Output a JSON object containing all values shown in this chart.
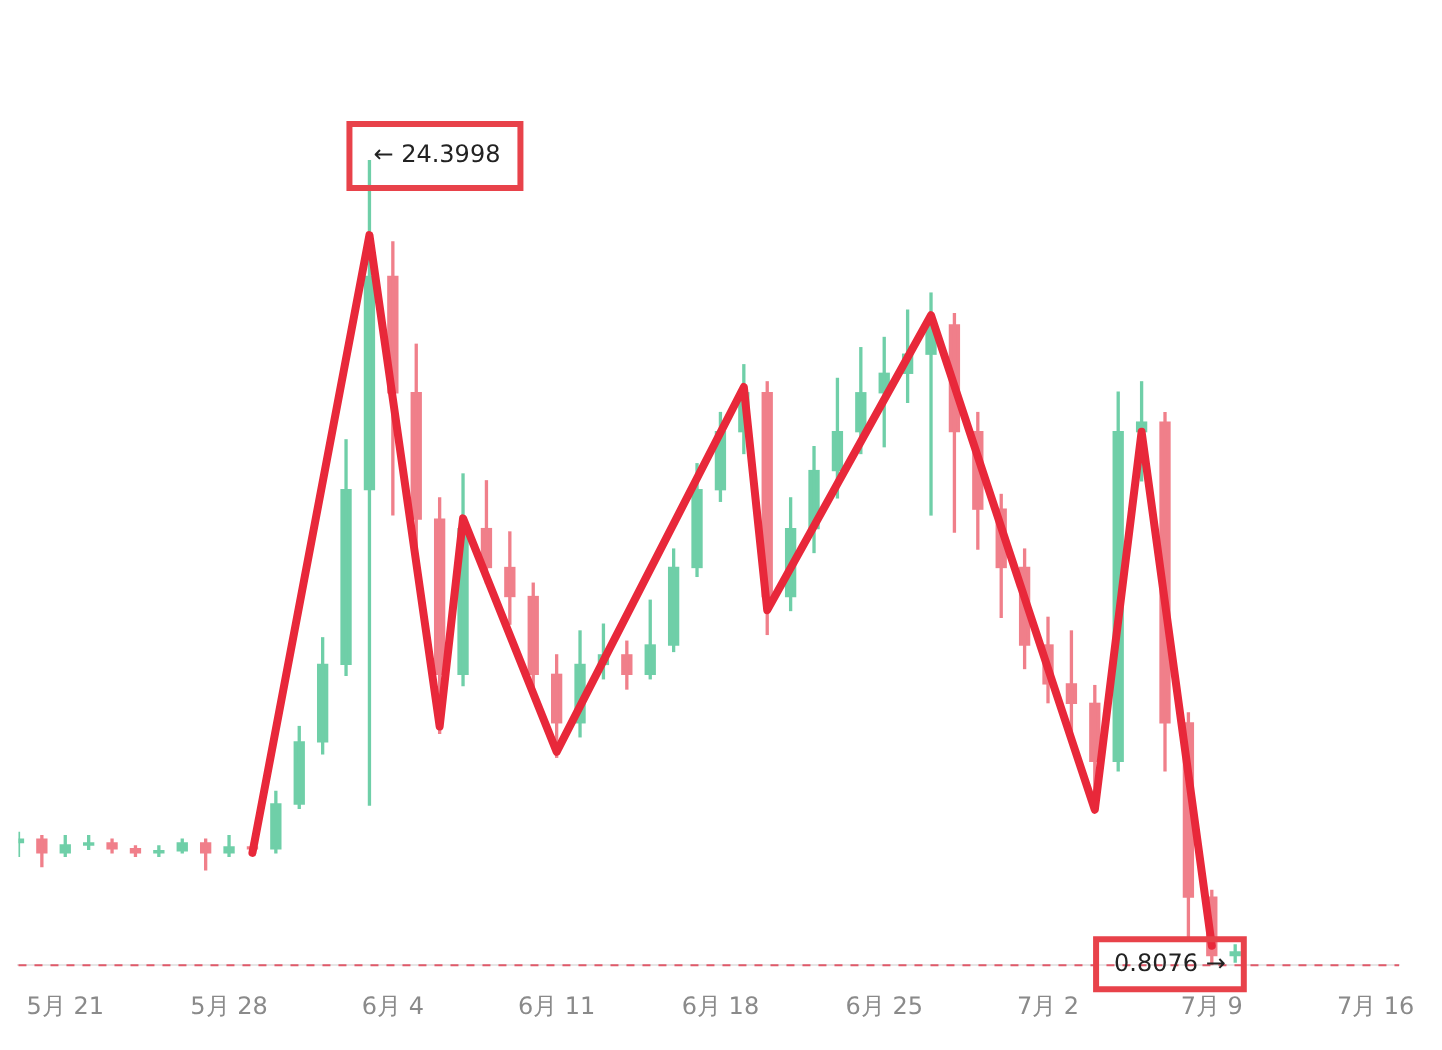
{
  "chart_data": {
    "type": "candlestick",
    "x": [
      "--05-19",
      "--05-20",
      "--05-21",
      "--05-22",
      "--05-23",
      "--05-24",
      "--05-25",
      "--05-26",
      "--05-27",
      "--05-28",
      "--05-29",
      "--05-30",
      "--05-31",
      "--06-01",
      "--06-02",
      "--06-03",
      "--06-04",
      "--06-05",
      "--06-06",
      "--06-07",
      "--06-08",
      "--06-09",
      "--06-10",
      "--06-11",
      "--06-12",
      "--06-13",
      "--06-14",
      "--06-15",
      "--06-16",
      "--06-17",
      "--06-18",
      "--06-19",
      "--06-20",
      "--06-21",
      "--06-22",
      "--06-23",
      "--06-24",
      "--06-25",
      "--06-26",
      "--06-27",
      "--06-28",
      "--06-29",
      "--06-30",
      "--07-01",
      "--07-02",
      "--07-03",
      "--07-04",
      "--07-05",
      "--07-06",
      "--07-07",
      "--07-08",
      "--07-09",
      "--07-10"
    ],
    "ohlc": [
      [
        4.4,
        4.7,
        4.0,
        4.5
      ],
      [
        4.5,
        4.6,
        3.7,
        4.1
      ],
      [
        4.1,
        4.6,
        4.0,
        4.33
      ],
      [
        4.33,
        4.6,
        4.2,
        4.39
      ],
      [
        4.39,
        4.5,
        4.1,
        4.22
      ],
      [
        4.22,
        4.3,
        4.0,
        4.1
      ],
      [
        4.1,
        4.3,
        4.0,
        4.16
      ],
      [
        4.16,
        4.5,
        4.1,
        4.39
      ],
      [
        4.39,
        4.5,
        3.6,
        4.1
      ],
      [
        4.1,
        4.6,
        4.0,
        4.27
      ],
      [
        4.27,
        4.4,
        4.1,
        4.22
      ],
      [
        4.22,
        5.9,
        4.1,
        5.53
      ],
      [
        5.53,
        7.8,
        5.4,
        7.35
      ],
      [
        7.35,
        10.4,
        7.0,
        9.62
      ],
      [
        9.62,
        16.2,
        9.3,
        14.74
      ],
      [
        14.74,
        24.3998,
        5.5,
        20.99
      ],
      [
        20.99,
        22.0,
        14.0,
        17.58
      ],
      [
        17.58,
        19.0,
        12.5,
        13.88
      ],
      [
        13.88,
        14.5,
        7.6,
        9.33
      ],
      [
        9.33,
        15.2,
        9.0,
        13.6
      ],
      [
        13.6,
        15.0,
        12.0,
        12.46
      ],
      [
        12.46,
        13.5,
        10.8,
        11.61
      ],
      [
        11.61,
        12.0,
        8.8,
        9.33
      ],
      [
        9.33,
        9.9,
        6.9,
        7.91
      ],
      [
        7.91,
        10.6,
        7.5,
        9.62
      ],
      [
        9.62,
        10.8,
        9.2,
        9.9
      ],
      [
        9.9,
        10.3,
        8.9,
        9.33
      ],
      [
        9.33,
        11.5,
        9.2,
        10.19
      ],
      [
        10.19,
        13.0,
        10.0,
        12.46
      ],
      [
        12.46,
        15.5,
        12.2,
        14.74
      ],
      [
        14.74,
        17.0,
        14.4,
        16.44
      ],
      [
        16.44,
        18.4,
        15.8,
        17.58
      ],
      [
        17.58,
        17.9,
        10.5,
        11.61
      ],
      [
        11.61,
        14.5,
        11.2,
        13.6
      ],
      [
        13.6,
        16.0,
        12.9,
        15.3
      ],
      [
        15.3,
        18.0,
        14.5,
        16.44
      ],
      [
        16.44,
        18.9,
        15.8,
        17.58
      ],
      [
        17.58,
        19.2,
        16.0,
        18.15
      ],
      [
        18.15,
        20.0,
        17.3,
        18.71
      ],
      [
        18.71,
        20.5,
        14.0,
        19.57
      ],
      [
        19.57,
        19.9,
        13.5,
        16.44
      ],
      [
        16.44,
        17.0,
        13.0,
        14.17
      ],
      [
        14.17,
        14.6,
        11.0,
        12.46
      ],
      [
        12.46,
        13.0,
        9.5,
        10.19
      ],
      [
        10.19,
        11.0,
        8.5,
        9.05
      ],
      [
        9.05,
        10.6,
        7.5,
        8.48
      ],
      [
        8.48,
        9.0,
        5.4,
        6.78
      ],
      [
        6.78,
        17.6,
        6.5,
        16.44
      ],
      [
        16.44,
        17.9,
        15.0,
        16.72
      ],
      [
        16.72,
        17.0,
        6.5,
        7.91
      ],
      [
        7.91,
        8.2,
        1.6,
        2.8
      ],
      [
        2.8,
        3.0,
        0.8076,
        1.09
      ],
      [
        1.09,
        1.4,
        0.9,
        1.2
      ]
    ],
    "colors": [
      "#6fcfa8",
      "#f07f8a",
      "#6fcfa8",
      "#6fcfa8",
      "#f07f8a",
      "#f07f8a",
      "#6fcfa8",
      "#6fcfa8",
      "#f07f8a",
      "#6fcfa8",
      "#f07f8a",
      "#6fcfa8",
      "#6fcfa8",
      "#6fcfa8",
      "#6fcfa8",
      "#6fcfa8",
      "#f07f8a",
      "#f07f8a",
      "#f07f8a",
      "#6fcfa8",
      "#f07f8a",
      "#f07f8a",
      "#f07f8a",
      "#f07f8a",
      "#6fcfa8",
      "#6fcfa8",
      "#f07f8a",
      "#6fcfa8",
      "#6fcfa8",
      "#6fcfa8",
      "#6fcfa8",
      "#6fcfa8",
      "#f07f8a",
      "#6fcfa8",
      "#6fcfa8",
      "#6fcfa8",
      "#6fcfa8",
      "#6fcfa8",
      "#6fcfa8",
      "#6fcfa8",
      "#f07f8a",
      "#f07f8a",
      "#f07f8a",
      "#f07f8a",
      "#f07f8a",
      "#f07f8a",
      "#f07f8a",
      "#6fcfa8",
      "#6fcfa8",
      "#f07f8a",
      "#f07f8a",
      "#f07f8a",
      "#6fcfa8"
    ],
    "series": [
      {
        "type": "line",
        "color": "#e8283a",
        "x": [
          "--05-29",
          "--06-03",
          "--06-06",
          "--06-07",
          "--06-11",
          "--06-19",
          "--06-20",
          "--06-27",
          "--07-04",
          "--07-06",
          "--07-09"
        ],
        "values": [
          4.1,
          22.2,
          7.8,
          13.9,
          7.06,
          17.75,
          11.21,
          19.85,
          5.36,
          16.44,
          1.38
        ]
      }
    ],
    "xlim": [
      "--05-19",
      "--07-17"
    ],
    "xticks": [
      {
        "value": "--05-21",
        "label": "5月 21"
      },
      {
        "value": "--05-28",
        "label": "5月 28"
      },
      {
        "value": "--06-04",
        "label": "6月 4"
      },
      {
        "value": "--06-11",
        "label": "6月 11"
      },
      {
        "value": "--06-18",
        "label": "6月 18"
      },
      {
        "value": "--06-25",
        "label": "6月 25"
      },
      {
        "value": "--07-02",
        "label": "7月 2"
      },
      {
        "value": "--07-09",
        "label": "7月 9"
      },
      {
        "value": "--07-16",
        "label": "7月 16"
      }
    ],
    "ref_lines": [
      {
        "axis": "y",
        "value": 0.8076,
        "color": "#e05a6a",
        "line_style": "dashed"
      }
    ],
    "annotations": [
      {
        "text": "← 24.3998",
        "x": "--06-03",
        "y": 24.3998
      },
      {
        "text": "0.8076 →",
        "x": "--07-09",
        "y": 0.8076
      }
    ]
  }
}
